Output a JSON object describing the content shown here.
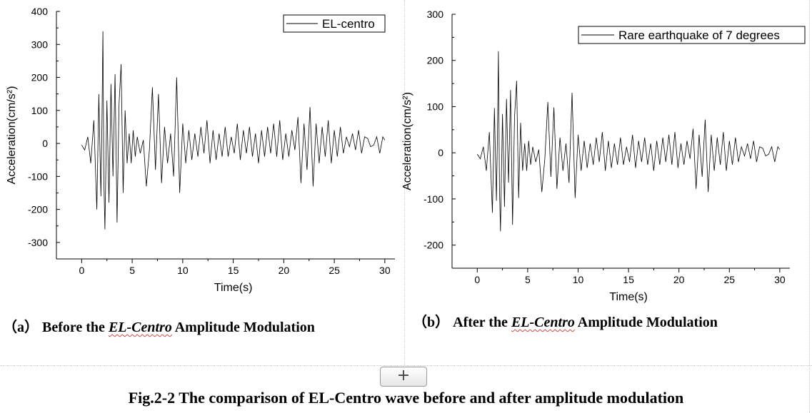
{
  "chart_data": [
    {
      "type": "line",
      "title": "Before the EL-Centro Amplitude Modulation",
      "xlabel": "Time(s)",
      "ylabel": "Acceleration(cm/s²)",
      "xlim": [
        -2.5,
        31
      ],
      "ylim": [
        -350,
        400
      ],
      "xticks": [
        0,
        5,
        10,
        15,
        20,
        25,
        30
      ],
      "yticks": [
        -300,
        -200,
        -100,
        0,
        100,
        200,
        300,
        400
      ],
      "legend": "top-right",
      "series": [
        {
          "name": "EL-centro",
          "x": [
            0,
            0.3,
            0.6,
            0.9,
            1.2,
            1.5,
            1.7,
            1.9,
            2.0,
            2.1,
            2.2,
            2.3,
            2.5,
            2.7,
            2.9,
            3.1,
            3.3,
            3.5,
            3.7,
            3.9,
            4.1,
            4.3,
            4.5,
            4.7,
            4.9,
            5.1,
            5.3,
            5.5,
            5.8,
            6.1,
            6.4,
            6.7,
            7.0,
            7.3,
            7.6,
            7.9,
            8.2,
            8.5,
            8.8,
            9.1,
            9.4,
            9.7,
            10.0,
            10.3,
            10.6,
            10.9,
            11.2,
            11.5,
            11.8,
            12.1,
            12.4,
            12.7,
            13.0,
            13.3,
            13.6,
            13.9,
            14.2,
            14.5,
            14.8,
            15.1,
            15.4,
            15.7,
            16.0,
            16.3,
            16.6,
            16.9,
            17.2,
            17.5,
            17.8,
            18.1,
            18.4,
            18.7,
            19.0,
            19.3,
            19.6,
            19.9,
            20.2,
            20.5,
            20.8,
            21.1,
            21.4,
            21.7,
            22.0,
            22.3,
            22.6,
            22.9,
            23.2,
            23.5,
            23.8,
            24.1,
            24.4,
            24.7,
            25.0,
            25.3,
            25.6,
            25.9,
            26.2,
            26.5,
            26.8,
            27.1,
            27.4,
            27.7,
            28.0,
            28.3,
            28.6,
            28.9,
            29.2,
            29.5,
            29.8,
            30.0
          ],
          "values": [
            -5,
            -20,
            20,
            -60,
            70,
            -200,
            150,
            -160,
            50,
            340,
            -120,
            -260,
            130,
            -180,
            180,
            -100,
            210,
            -240,
            120,
            240,
            -150,
            100,
            -60,
            30,
            -60,
            40,
            -40,
            20,
            -30,
            10,
            -130,
            -20,
            170,
            -80,
            150,
            -120,
            50,
            -60,
            30,
            -100,
            200,
            -150,
            60,
            -60,
            40,
            -50,
            30,
            -40,
            50,
            -30,
            70,
            -60,
            40,
            -50,
            30,
            -40,
            50,
            -40,
            20,
            -30,
            60,
            -50,
            40,
            -30,
            50,
            -40,
            30,
            -60,
            40,
            -40,
            50,
            -30,
            60,
            -40,
            70,
            -50,
            30,
            -40,
            40,
            -20,
            80,
            -120,
            60,
            -80,
            110,
            -130,
            60,
            -60,
            50,
            -40,
            70,
            -60,
            40,
            -40,
            50,
            -30,
            20,
            -10,
            30,
            -20,
            40,
            -30,
            20,
            15,
            -10,
            -5,
            20,
            -30,
            20,
            10
          ]
        }
      ]
    },
    {
      "type": "line",
      "title": "After the EL-Centro Amplitude Modulation",
      "xlabel": "Time(s)",
      "ylabel": "Acceleration(cm/s²)",
      "xlim": [
        -2.5,
        31
      ],
      "ylim": [
        -250,
        300
      ],
      "xticks": [
        0,
        5,
        10,
        15,
        20,
        25,
        30
      ],
      "yticks": [
        -200,
        -100,
        0,
        100,
        200,
        300
      ],
      "legend": "top-right",
      "series": [
        {
          "name": "Rare earthquake of 7 degrees",
          "x": [
            0,
            0.3,
            0.6,
            0.9,
            1.2,
            1.5,
            1.7,
            1.9,
            2.0,
            2.1,
            2.2,
            2.3,
            2.5,
            2.7,
            2.9,
            3.1,
            3.3,
            3.5,
            3.7,
            3.9,
            4.1,
            4.3,
            4.5,
            4.7,
            4.9,
            5.1,
            5.3,
            5.5,
            5.8,
            6.1,
            6.4,
            6.7,
            7.0,
            7.3,
            7.6,
            7.9,
            8.2,
            8.5,
            8.8,
            9.1,
            9.4,
            9.7,
            10.0,
            10.3,
            10.6,
            10.9,
            11.2,
            11.5,
            11.8,
            12.1,
            12.4,
            12.7,
            13.0,
            13.3,
            13.6,
            13.9,
            14.2,
            14.5,
            14.8,
            15.1,
            15.4,
            15.7,
            16.0,
            16.3,
            16.6,
            16.9,
            17.2,
            17.5,
            17.8,
            18.1,
            18.4,
            18.7,
            19.0,
            19.3,
            19.6,
            19.9,
            20.2,
            20.5,
            20.8,
            21.1,
            21.4,
            21.7,
            22.0,
            22.3,
            22.6,
            22.9,
            23.2,
            23.5,
            23.8,
            24.1,
            24.4,
            24.7,
            25.0,
            25.3,
            25.6,
            25.9,
            26.2,
            26.5,
            26.8,
            27.1,
            27.4,
            27.7,
            28.0,
            28.3,
            28.6,
            28.9,
            29.2,
            29.5,
            29.8,
            30.0
          ],
          "values": [
            -3,
            -13,
            13,
            -39,
            45,
            -130,
            97,
            -104,
            32,
            220,
            -78,
            -170,
            84,
            -117,
            117,
            -65,
            136,
            -156,
            78,
            156,
            -98,
            65,
            -39,
            20,
            -39,
            26,
            -26,
            13,
            -20,
            7,
            -85,
            -13,
            110,
            -52,
            98,
            -78,
            33,
            -39,
            20,
            -65,
            130,
            -98,
            39,
            -39,
            26,
            -33,
            20,
            -26,
            33,
            -20,
            45,
            -39,
            26,
            -33,
            20,
            -26,
            33,
            -26,
            13,
            -20,
            39,
            -33,
            26,
            -20,
            33,
            -26,
            20,
            -39,
            26,
            -26,
            33,
            -20,
            39,
            -26,
            45,
            -33,
            20,
            -26,
            26,
            -13,
            52,
            -78,
            39,
            -52,
            72,
            -85,
            39,
            -39,
            33,
            -26,
            45,
            -39,
            26,
            -26,
            33,
            -20,
            13,
            -7,
            20,
            -13,
            26,
            -20,
            13,
            10,
            -7,
            -3,
            13,
            -20,
            13,
            7
          ]
        }
      ]
    }
  ],
  "captions": {
    "a": {
      "prefix": "（a）  Before the ",
      "name": "EL-Centro",
      "suffix": "  Amplitude Modulation"
    },
    "b": {
      "prefix": "（b）   After the ",
      "name": "EL-Centro",
      "suffix": "  Amplitude Modulation"
    },
    "figure": "Fig.2-2 The comparison of EL-Centro wave before and after amplitude modulation"
  },
  "ui": {
    "add_button": "+"
  }
}
